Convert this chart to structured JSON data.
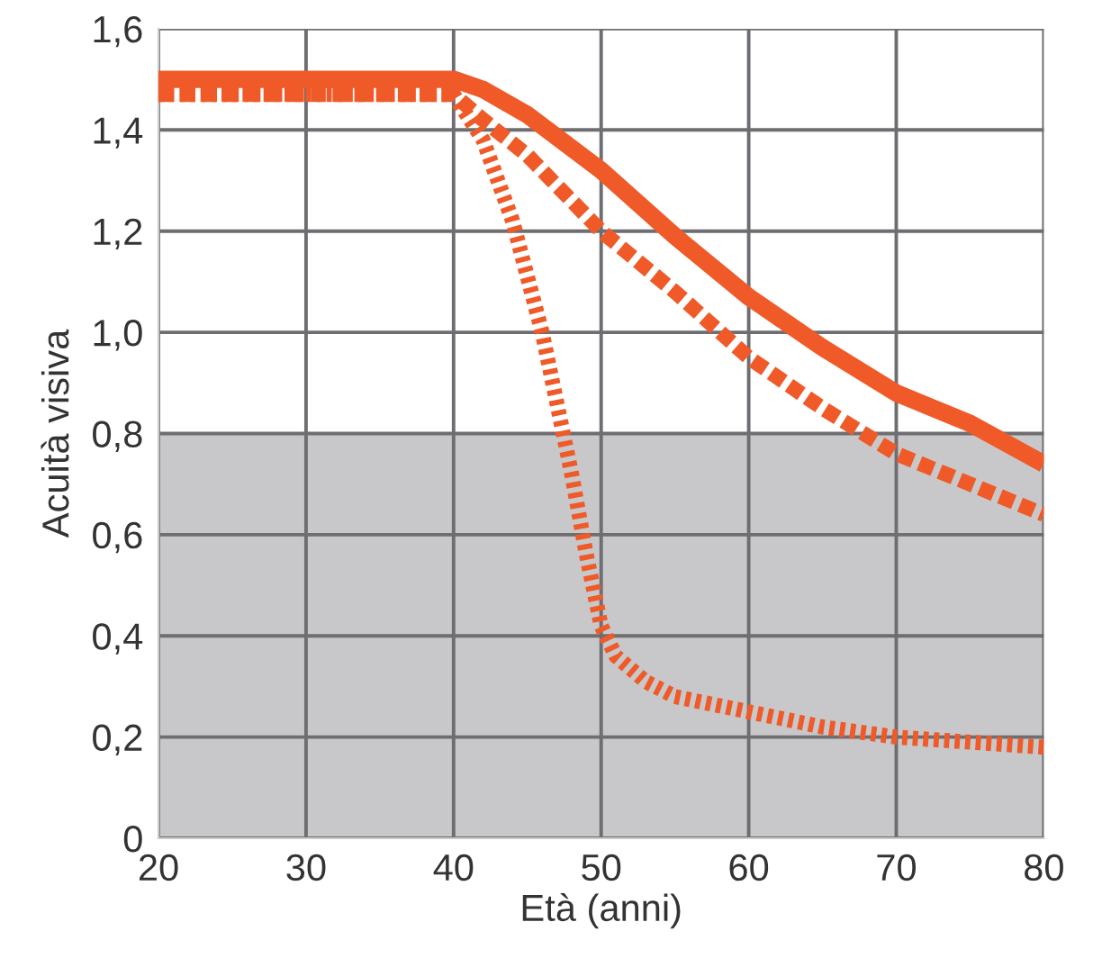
{
  "chart_data": {
    "type": "line",
    "xlabel": "Età (anni)",
    "ylabel": "Acuità visiva",
    "xlim": [
      20,
      80
    ],
    "xticks": [
      20,
      30,
      40,
      50,
      60,
      70,
      80
    ],
    "ylim": [
      0,
      1.6
    ],
    "yticks": [
      0,
      {
        "value": 0.2,
        "label": "0,2"
      },
      {
        "value": 0.4,
        "label": "0,4"
      },
      {
        "value": 0.6,
        "label": "0,6"
      },
      {
        "value": 0.8,
        "label": "0,8"
      },
      {
        "value": 1.0,
        "label": "1,0"
      },
      {
        "value": 1.2,
        "label": "1,2"
      },
      {
        "value": 1.4,
        "label": "1,4"
      },
      {
        "value": 1.6,
        "label": "1,6"
      }
    ],
    "grid": true,
    "bands": [
      {
        "axis": "y",
        "from": 0,
        "to": 0.8,
        "color": "#c8c8ca"
      }
    ],
    "series": [
      {
        "color": "#f05a28",
        "line_style": "solid",
        "x": [
          20,
          40,
          42,
          45,
          50,
          55,
          60,
          65,
          70,
          75,
          80
        ],
        "values": [
          1.5,
          1.5,
          1.48,
          1.43,
          1.32,
          1.19,
          1.07,
          0.97,
          0.88,
          0.82,
          0.74
        ]
      },
      {
        "color": "#f05a28",
        "line_style": "dashed",
        "x": [
          20,
          40,
          42,
          45,
          50,
          55,
          60,
          65,
          70,
          75,
          80
        ],
        "values": [
          1.47,
          1.47,
          1.42,
          1.35,
          1.2,
          1.08,
          0.95,
          0.85,
          0.76,
          0.7,
          0.64
        ]
      },
      {
        "color": "#f05a28",
        "line_style": "dotted",
        "x": [
          20,
          40,
          42,
          44,
          46,
          48,
          49,
          50,
          51,
          53,
          55,
          60,
          65,
          70,
          75,
          80
        ],
        "values": [
          1.47,
          1.47,
          1.38,
          1.22,
          1.0,
          0.72,
          0.56,
          0.42,
          0.36,
          0.31,
          0.28,
          0.25,
          0.22,
          0.2,
          0.19,
          0.18
        ]
      }
    ]
  }
}
